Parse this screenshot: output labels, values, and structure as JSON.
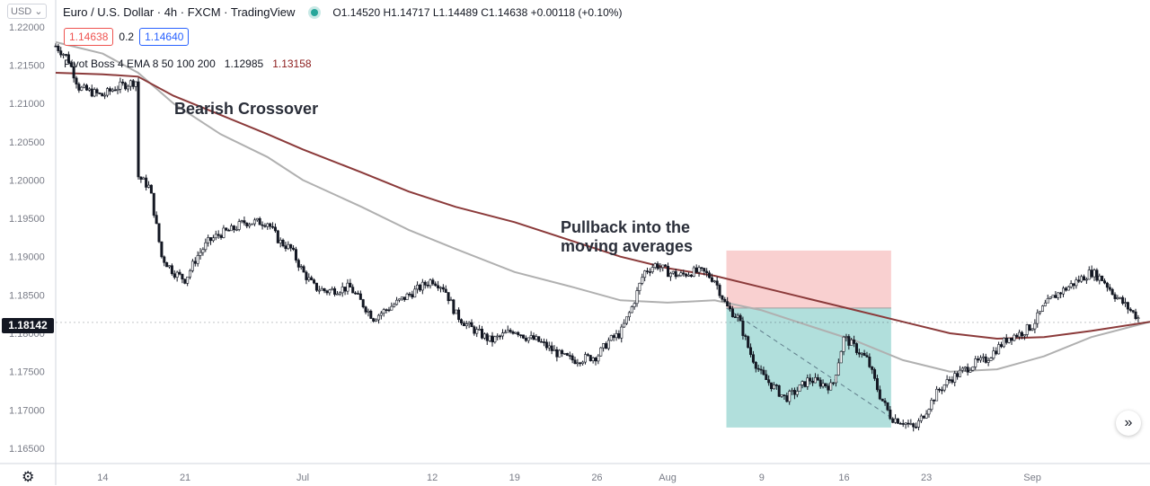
{
  "header": {
    "title": "Euro / U.S. Dollar · 4h · FXCM · TradingView",
    "ohlc": "O1.14520 H1.14717 L1.14489 C1.14638 +0.00118 (+0.10%)",
    "currency": "USD",
    "sell_price": "1.14638",
    "spread": "0.2",
    "buy_price": "1.14640",
    "indicator_label": "Pivot Boss 4 EMA 8 50 100 200",
    "indicator_val1": "1.12985",
    "indicator_val2": "1.13158"
  },
  "annotations": {
    "bearish": "Bearish Crossover",
    "pullback_line1": "Pullback into the",
    "pullback_line2": "moving averages"
  },
  "last_price": "1.18142",
  "icons": {
    "settings": "gear-icon",
    "scroll": "scroll-right-icon"
  },
  "colors": {
    "ema100": "#b0b0b0",
    "ema200": "#8b3a3a",
    "stop_zone": "#f8c8c8",
    "target_zone": "#a8dcd8",
    "last_price_bg": "#131722"
  },
  "chart_data": {
    "type": "line",
    "title": "Euro / U.S. Dollar",
    "ylim": [
      1.163,
      1.2235
    ],
    "y_ticks": [
      1.22,
      1.215,
      1.21,
      1.205,
      1.2,
      1.195,
      1.19,
      1.185,
      1.18,
      1.175,
      1.17,
      1.165
    ],
    "y_tick_labels": [
      "1.22000",
      "1.21500",
      "1.21000",
      "1.20500",
      "1.20000",
      "1.19500",
      "1.19000",
      "1.18500",
      "1.18000",
      "1.17500",
      "1.17000",
      "1.16500"
    ],
    "x_tick_labels": [
      "14",
      "21",
      "Jul",
      "12",
      "19",
      "26",
      "Aug",
      "9",
      "16",
      "23",
      "Sep"
    ],
    "x_tick_dates": [
      "2021-06-14",
      "2021-06-21",
      "2021-07-01",
      "2021-07-12",
      "2021-07-19",
      "2021-07-26",
      "2021-08-01",
      "2021-08-09",
      "2021-08-16",
      "2021-08-23",
      "2021-09-01"
    ],
    "xlim": [
      "2021-06-10",
      "2021-09-11"
    ],
    "series": [
      {
        "style": "candles",
        "points": [
          [
            "2021-06-10",
            1.2175
          ],
          [
            "2021-06-11",
            1.216
          ],
          [
            "2021-06-12",
            1.212
          ],
          [
            "2021-06-14",
            1.211
          ],
          [
            "2021-06-15",
            1.212
          ],
          [
            "2021-06-16",
            1.2125
          ],
          [
            "2021-06-17",
            1.213
          ],
          [
            "2021-06-17",
            1.2005
          ],
          [
            "2021-06-18",
            1.199
          ],
          [
            "2021-06-19",
            1.19
          ],
          [
            "2021-06-20",
            1.188
          ],
          [
            "2021-06-21",
            1.187
          ],
          [
            "2021-06-22",
            1.19
          ],
          [
            "2021-06-23",
            1.192
          ],
          [
            "2021-06-24",
            1.193
          ],
          [
            "2021-06-25",
            1.1935
          ],
          [
            "2021-06-26",
            1.1945
          ],
          [
            "2021-06-28",
            1.1945
          ],
          [
            "2021-06-29",
            1.192
          ],
          [
            "2021-06-30",
            1.191
          ],
          [
            "2021-07-01",
            1.188
          ],
          [
            "2021-07-02",
            1.186
          ],
          [
            "2021-07-03",
            1.1855
          ],
          [
            "2021-07-05",
            1.186
          ],
          [
            "2021-07-06",
            1.184
          ],
          [
            "2021-07-07",
            1.182
          ],
          [
            "2021-07-08",
            1.183
          ],
          [
            "2021-07-09",
            1.184
          ],
          [
            "2021-07-10",
            1.185
          ],
          [
            "2021-07-12",
            1.187
          ],
          [
            "2021-07-13",
            1.186
          ],
          [
            "2021-07-14",
            1.1825
          ],
          [
            "2021-07-15",
            1.181
          ],
          [
            "2021-07-16",
            1.18
          ],
          [
            "2021-07-17",
            1.179
          ],
          [
            "2021-07-19",
            1.1805
          ],
          [
            "2021-07-20",
            1.1795
          ],
          [
            "2021-07-21",
            1.179
          ],
          [
            "2021-07-22",
            1.178
          ],
          [
            "2021-07-23",
            1.177
          ],
          [
            "2021-07-24",
            1.1765
          ],
          [
            "2021-07-26",
            1.177
          ],
          [
            "2021-07-27",
            1.179
          ],
          [
            "2021-07-28",
            1.18
          ],
          [
            "2021-07-29",
            1.1835
          ],
          [
            "2021-07-30",
            1.188
          ],
          [
            "2021-07-31",
            1.189
          ],
          [
            "2021-08-01",
            1.188
          ],
          [
            "2021-08-02",
            1.1875
          ],
          [
            "2021-08-03",
            1.188
          ],
          [
            "2021-08-04",
            1.188
          ],
          [
            "2021-08-05",
            1.187
          ],
          [
            "2021-08-06",
            1.1835
          ],
          [
            "2021-08-07",
            1.182
          ],
          [
            "2021-08-08",
            1.1775
          ],
          [
            "2021-08-09",
            1.1745
          ],
          [
            "2021-08-10",
            1.173
          ],
          [
            "2021-08-11",
            1.1715
          ],
          [
            "2021-08-12",
            1.1725
          ],
          [
            "2021-08-13",
            1.174
          ],
          [
            "2021-08-14",
            1.1735
          ],
          [
            "2021-08-15",
            1.173
          ],
          [
            "2021-08-16",
            1.1795
          ],
          [
            "2021-08-17",
            1.178
          ],
          [
            "2021-08-18",
            1.1765
          ],
          [
            "2021-08-19",
            1.172
          ],
          [
            "2021-08-20",
            1.169
          ],
          [
            "2021-08-21",
            1.1685
          ],
          [
            "2021-08-22",
            1.1675
          ],
          [
            "2021-08-23",
            1.17
          ],
          [
            "2021-08-24",
            1.1725
          ],
          [
            "2021-08-25",
            1.174
          ],
          [
            "2021-08-26",
            1.175
          ],
          [
            "2021-08-27",
            1.176
          ],
          [
            "2021-08-28",
            1.1765
          ],
          [
            "2021-08-29",
            1.178
          ],
          [
            "2021-08-30",
            1.1795
          ],
          [
            "2021-08-31",
            1.18
          ],
          [
            "2021-09-01",
            1.181
          ],
          [
            "2021-09-02",
            1.1835
          ],
          [
            "2021-09-03",
            1.185
          ],
          [
            "2021-09-04",
            1.186
          ],
          [
            "2021-09-05",
            1.187
          ],
          [
            "2021-09-06",
            1.188
          ],
          [
            "2021-09-07",
            1.187
          ],
          [
            "2021-09-08",
            1.185
          ],
          [
            "2021-09-09",
            1.1835
          ],
          [
            "2021-09-10",
            1.182
          ]
        ]
      },
      {
        "style": "ema100",
        "points": [
          [
            "2021-06-10",
            1.218
          ],
          [
            "2021-06-14",
            1.2165
          ],
          [
            "2021-06-17",
            1.214
          ],
          [
            "2021-06-20",
            1.21
          ],
          [
            "2021-06-24",
            1.206
          ],
          [
            "2021-06-28",
            1.203
          ],
          [
            "2021-07-01",
            1.2
          ],
          [
            "2021-07-06",
            1.1965
          ],
          [
            "2021-07-10",
            1.1935
          ],
          [
            "2021-07-14",
            1.191
          ],
          [
            "2021-07-19",
            1.188
          ],
          [
            "2021-07-24",
            1.186
          ],
          [
            "2021-07-28",
            1.1843
          ],
          [
            "2021-08-01",
            1.184
          ],
          [
            "2021-08-05",
            1.1843
          ],
          [
            "2021-08-09",
            1.183
          ],
          [
            "2021-08-13",
            1.181
          ],
          [
            "2021-08-17",
            1.179
          ],
          [
            "2021-08-21",
            1.1765
          ],
          [
            "2021-08-25",
            1.175
          ],
          [
            "2021-08-29",
            1.1753
          ],
          [
            "2021-09-02",
            1.177
          ],
          [
            "2021-09-06",
            1.1795
          ],
          [
            "2021-09-11",
            1.1815
          ]
        ]
      },
      {
        "style": "ema200",
        "points": [
          [
            "2021-06-10",
            1.214
          ],
          [
            "2021-06-14",
            1.2138
          ],
          [
            "2021-06-17",
            1.2135
          ],
          [
            "2021-06-20",
            1.211
          ],
          [
            "2021-06-24",
            1.2085
          ],
          [
            "2021-06-28",
            1.206
          ],
          [
            "2021-07-01",
            1.204
          ],
          [
            "2021-07-06",
            1.201
          ],
          [
            "2021-07-10",
            1.1985
          ],
          [
            "2021-07-14",
            1.1965
          ],
          [
            "2021-07-19",
            1.1945
          ],
          [
            "2021-07-24",
            1.192
          ],
          [
            "2021-07-28",
            1.19
          ],
          [
            "2021-08-01",
            1.1885
          ],
          [
            "2021-08-05",
            1.1875
          ],
          [
            "2021-08-09",
            1.186
          ],
          [
            "2021-08-13",
            1.1845
          ],
          [
            "2021-08-17",
            1.183
          ],
          [
            "2021-08-21",
            1.1815
          ],
          [
            "2021-08-25",
            1.18
          ],
          [
            "2021-08-29",
            1.1793
          ],
          [
            "2021-09-02",
            1.1795
          ],
          [
            "2021-09-06",
            1.1803
          ],
          [
            "2021-09-11",
            1.1815
          ]
        ]
      }
    ],
    "position": {
      "entry": 1.1833,
      "stop": 1.1908,
      "target": 1.1677,
      "start": "2021-08-06",
      "end": "2021-08-20"
    }
  }
}
